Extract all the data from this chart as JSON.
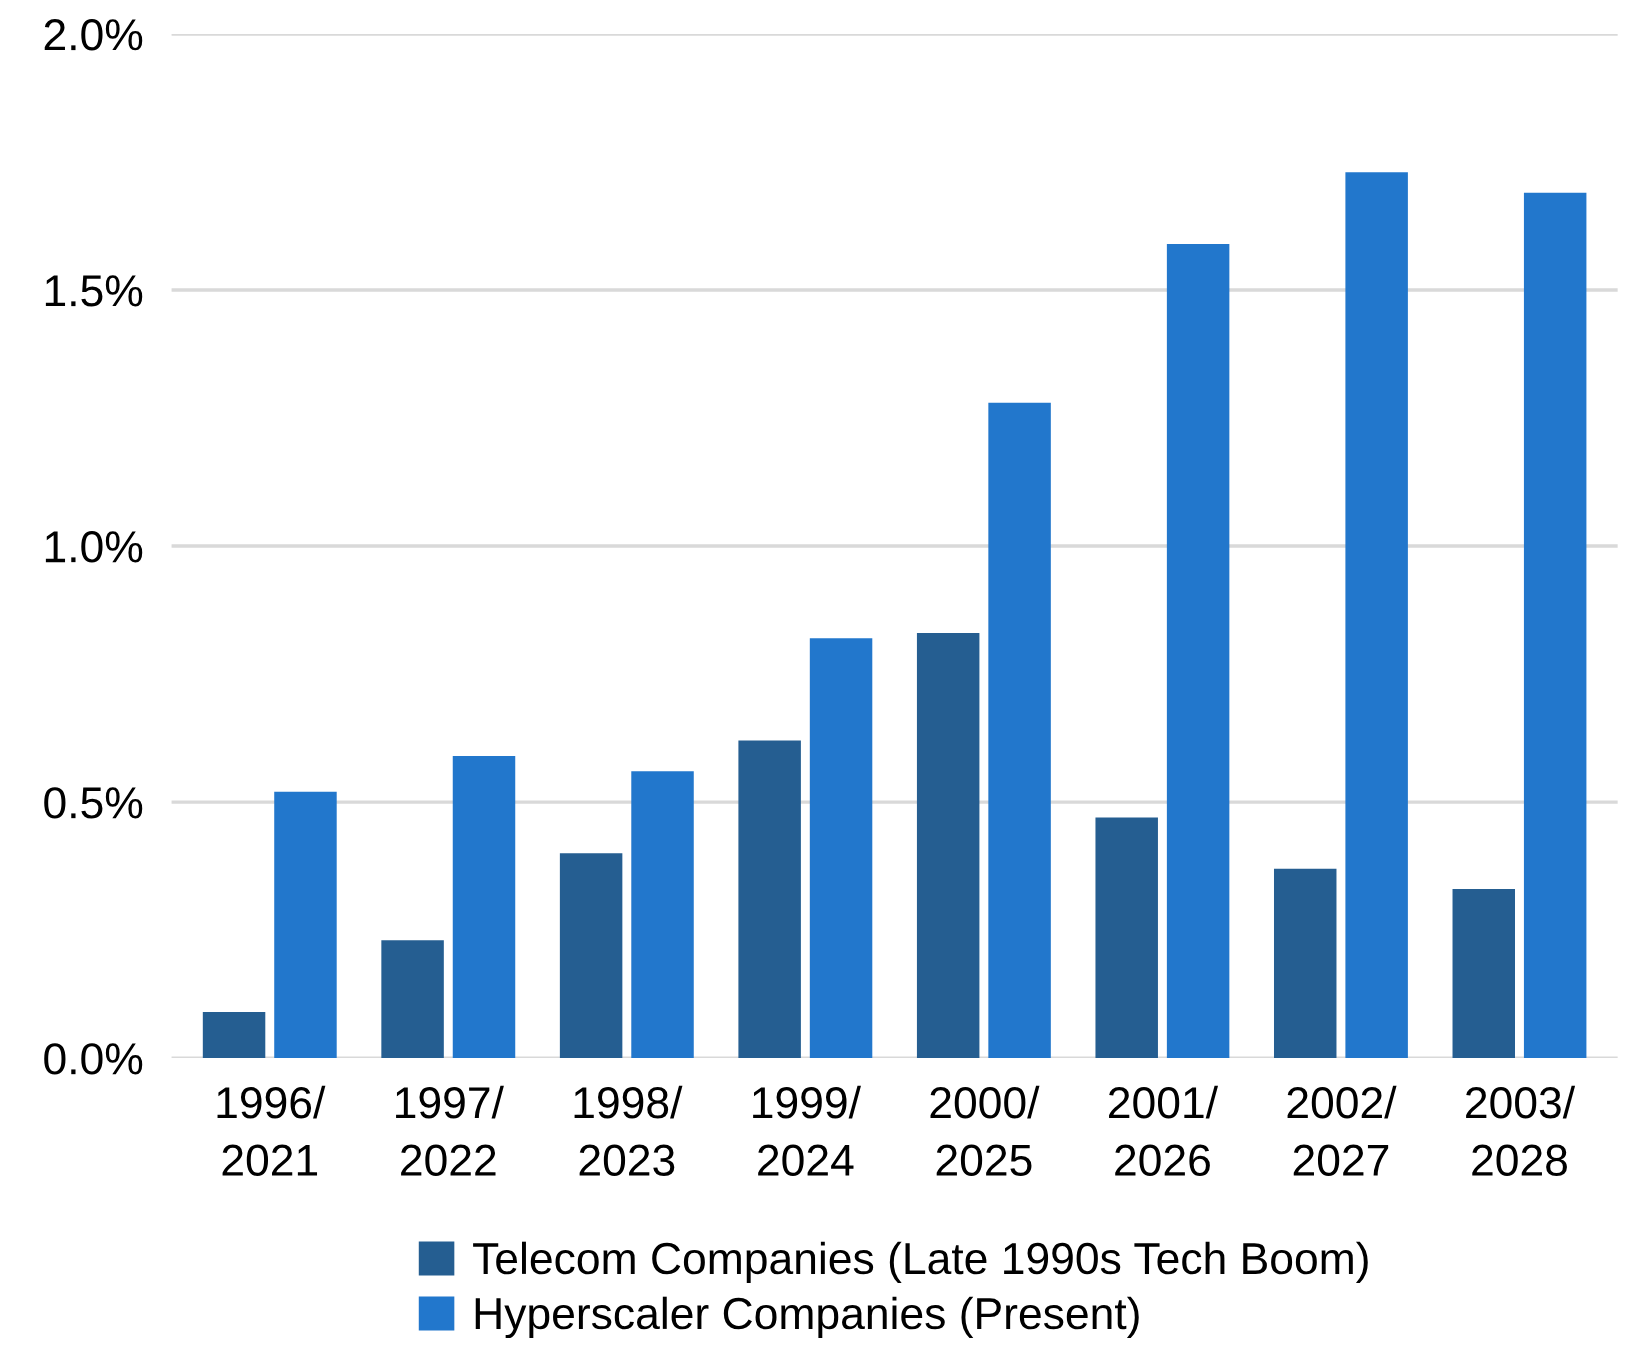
{
  "chart_data": {
    "type": "bar",
    "categories": [
      "1996/\n2021",
      "1997/\n2022",
      "1998/\n2023",
      "1999/\n2024",
      "2000/\n2025",
      "2001/\n2026",
      "2002/\n2027",
      "2003/\n2028"
    ],
    "series": [
      {
        "name": "Telecom Companies (Late 1990s Tech Boom)",
        "color": "#255e91",
        "values": [
          0.09,
          0.23,
          0.4,
          0.62,
          0.83,
          0.47,
          0.37,
          0.33
        ]
      },
      {
        "name": "Hyperscaler Companies (Present)",
        "color": "#2277cc",
        "values": [
          0.52,
          0.59,
          0.56,
          0.82,
          1.28,
          1.59,
          1.73,
          1.69
        ]
      }
    ],
    "ylim": [
      0,
      2.0
    ],
    "yticks": [
      {
        "value": 0,
        "label": "0.0%"
      },
      {
        "value": 0.5,
        "label": "0.5%"
      },
      {
        "value": 1.0,
        "label": "1.0%"
      },
      {
        "value": 1.5,
        "label": "1.5%"
      },
      {
        "value": 2.0,
        "label": "2.0%"
      }
    ],
    "grid": "y",
    "legend": "bottom"
  }
}
